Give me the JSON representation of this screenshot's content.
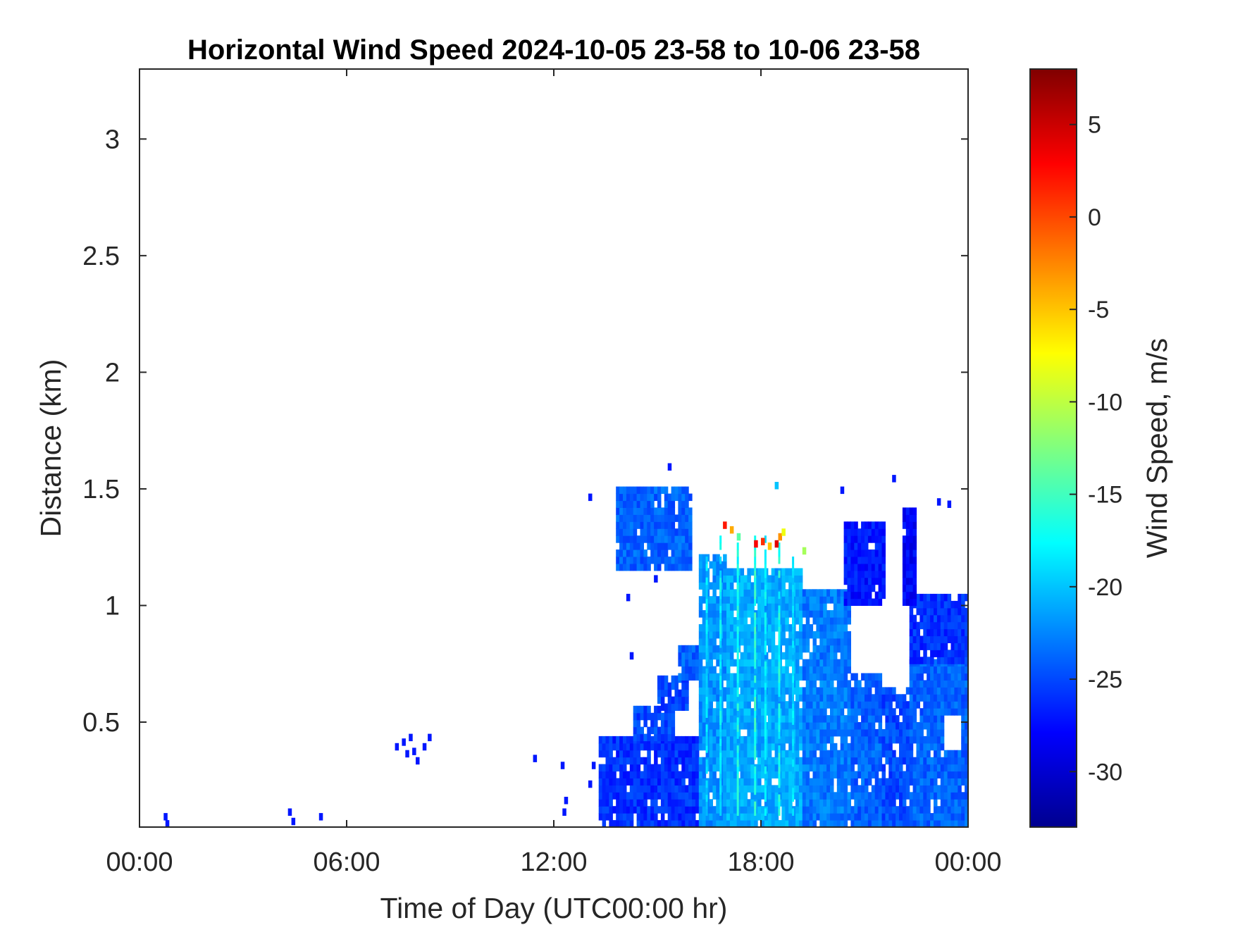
{
  "chart_data": {
    "type": "heatmap",
    "title": "Horizontal Wind Speed 2024-10-05 23-58 to 10-06 23-58",
    "xlabel": "Time of Day (UTC00:00 hr)",
    "ylabel": "Distance (km)",
    "colorbar_label": "Wind Speed, m/s",
    "x_unit": "hour",
    "xlim": [
      0,
      24
    ],
    "ylim": [
      0.05,
      3.3
    ],
    "clim": [
      -33,
      8
    ],
    "colormap": "jet",
    "x_ticks": [
      {
        "value": 0,
        "label": "00:00"
      },
      {
        "value": 6,
        "label": "06:00"
      },
      {
        "value": 12,
        "label": "12:00"
      },
      {
        "value": 18,
        "label": "18:00"
      },
      {
        "value": 24,
        "label": "00:00"
      }
    ],
    "y_ticks": [
      {
        "value": 0.5,
        "label": "0.5"
      },
      {
        "value": 1,
        "label": "1"
      },
      {
        "value": 1.5,
        "label": "1.5"
      },
      {
        "value": 2,
        "label": "2"
      },
      {
        "value": 2.5,
        "label": "2.5"
      },
      {
        "value": 3,
        "label": "3"
      }
    ],
    "colorbar_ticks": [
      {
        "value": -30,
        "label": "-30"
      },
      {
        "value": -25,
        "label": "-25"
      },
      {
        "value": -20,
        "label": "-20"
      },
      {
        "value": -15,
        "label": "-15"
      },
      {
        "value": -10,
        "label": "-10"
      },
      {
        "value": -5,
        "label": "-5"
      },
      {
        "value": 0,
        "label": "0"
      },
      {
        "value": 5,
        "label": "5"
      }
    ],
    "regions": [
      {
        "t0": 13.3,
        "t1": 16.2,
        "h0": 0.05,
        "h1": 0.42,
        "v": -26
      },
      {
        "t0": 14.3,
        "t1": 15.5,
        "h0": 0.42,
        "h1": 0.55,
        "v": -25
      },
      {
        "t0": 15.0,
        "t1": 15.9,
        "h0": 0.55,
        "h1": 0.68,
        "v": -25
      },
      {
        "t0": 15.6,
        "t1": 16.3,
        "h0": 0.68,
        "h1": 0.82,
        "v": -24
      },
      {
        "t0": 16.2,
        "t1": 17.0,
        "h0": 0.05,
        "h1": 1.2,
        "v": -22
      },
      {
        "t0": 17.0,
        "t1": 19.2,
        "h0": 0.05,
        "h1": 1.15,
        "v": -21
      },
      {
        "t0": 19.2,
        "t1": 20.6,
        "h0": 0.05,
        "h1": 1.05,
        "v": -23
      },
      {
        "t0": 20.6,
        "t1": 21.5,
        "h0": 0.05,
        "h1": 0.7,
        "v": -24
      },
      {
        "t0": 21.5,
        "t1": 22.3,
        "h0": 0.05,
        "h1": 0.65,
        "v": -25
      },
      {
        "t0": 22.3,
        "t1": 24.0,
        "h0": 0.05,
        "h1": 0.75,
        "v": -24
      },
      {
        "t0": 22.3,
        "t1": 24.0,
        "h0": 0.75,
        "h1": 1.05,
        "v": -26
      },
      {
        "t0": 13.8,
        "t1": 16.0,
        "h0": 1.15,
        "h1": 1.5,
        "v": -24
      },
      {
        "t0": 20.4,
        "t1": 21.6,
        "h0": 1.0,
        "h1": 1.35,
        "v": -27
      },
      {
        "t0": 22.1,
        "t1": 22.5,
        "h0": 1.0,
        "h1": 1.4,
        "v": -28
      }
    ],
    "streaks": [
      {
        "t": 16.4,
        "h0": 0.1,
        "h1": 1.2,
        "v": -19
      },
      {
        "t": 16.8,
        "h0": 0.1,
        "h1": 1.3,
        "v": -18
      },
      {
        "t": 17.3,
        "h0": 0.1,
        "h1": 1.27,
        "v": -17
      },
      {
        "t": 17.8,
        "h0": 0.1,
        "h1": 1.28,
        "v": -16
      },
      {
        "t": 18.1,
        "h0": 0.1,
        "h1": 1.3,
        "v": -18
      },
      {
        "t": 18.5,
        "h0": 0.1,
        "h1": 1.25,
        "v": -17
      },
      {
        "t": 18.9,
        "h0": 0.1,
        "h1": 1.2,
        "v": -19
      }
    ],
    "hotspots": [
      {
        "t": 16.9,
        "h": 1.33,
        "v": 2
      },
      {
        "t": 17.1,
        "h": 1.31,
        "v": -4
      },
      {
        "t": 17.3,
        "h": 1.28,
        "v": -14
      },
      {
        "t": 17.8,
        "h": 1.25,
        "v": 3
      },
      {
        "t": 18.0,
        "h": 1.26,
        "v": 1
      },
      {
        "t": 18.2,
        "h": 1.24,
        "v": -5
      },
      {
        "t": 18.4,
        "h": 1.25,
        "v": 4
      },
      {
        "t": 18.5,
        "h": 1.28,
        "v": -3
      },
      {
        "t": 18.6,
        "h": 1.3,
        "v": -8
      },
      {
        "t": 19.2,
        "h": 1.22,
        "v": -11
      }
    ],
    "points": [
      {
        "t": 0.7,
        "h": 0.08,
        "v": -27
      },
      {
        "t": 0.75,
        "h": 0.05,
        "v": -27
      },
      {
        "t": 4.3,
        "h": 0.1,
        "v": -27
      },
      {
        "t": 4.4,
        "h": 0.06,
        "v": -27
      },
      {
        "t": 5.2,
        "h": 0.08,
        "v": -27
      },
      {
        "t": 7.4,
        "h": 0.38,
        "v": -27
      },
      {
        "t": 7.6,
        "h": 0.4,
        "v": -27
      },
      {
        "t": 7.7,
        "h": 0.35,
        "v": -27
      },
      {
        "t": 7.8,
        "h": 0.42,
        "v": -27
      },
      {
        "t": 7.9,
        "h": 0.36,
        "v": -27
      },
      {
        "t": 8.0,
        "h": 0.32,
        "v": -27
      },
      {
        "t": 8.2,
        "h": 0.38,
        "v": -27
      },
      {
        "t": 8.35,
        "h": 0.42,
        "v": -27
      },
      {
        "t": 11.4,
        "h": 0.33,
        "v": -27
      },
      {
        "t": 12.2,
        "h": 0.3,
        "v": -27
      },
      {
        "t": 12.3,
        "h": 0.15,
        "v": -27
      },
      {
        "t": 12.25,
        "h": 0.1,
        "v": -27
      },
      {
        "t": 13.0,
        "h": 0.22,
        "v": -27
      },
      {
        "t": 13.1,
        "h": 0.3,
        "v": -27
      },
      {
        "t": 14.1,
        "h": 1.02,
        "v": -27
      },
      {
        "t": 14.2,
        "h": 0.77,
        "v": -27
      },
      {
        "t": 14.9,
        "h": 1.1,
        "v": -27
      },
      {
        "t": 15.3,
        "h": 1.58,
        "v": -27
      },
      {
        "t": 13.0,
        "h": 1.45,
        "v": -27
      },
      {
        "t": 18.4,
        "h": 1.5,
        "v": -20
      },
      {
        "t": 20.3,
        "h": 1.48,
        "v": -27
      },
      {
        "t": 21.8,
        "h": 1.53,
        "v": -27
      },
      {
        "t": 23.1,
        "h": 1.43,
        "v": -27
      },
      {
        "t": 23.4,
        "h": 1.42,
        "v": -27
      },
      {
        "t": 24.0,
        "h": 1.15,
        "v": -27
      }
    ],
    "gaps": [
      {
        "t0": 23.3,
        "t1": 23.8,
        "h0": 0.38,
        "h1": 0.52
      },
      {
        "t0": 21.9,
        "t1": 22.2,
        "h0": 0.6,
        "h1": 0.95
      },
      {
        "t0": 20.9,
        "t1": 21.3,
        "h0": 0.75,
        "h1": 1.0
      }
    ]
  }
}
